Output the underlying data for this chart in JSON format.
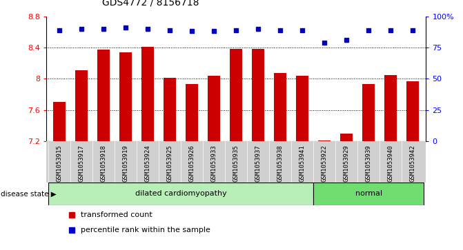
{
  "title": "GDS4772 / 8156718",
  "samples": [
    "GSM1053915",
    "GSM1053917",
    "GSM1053918",
    "GSM1053919",
    "GSM1053924",
    "GSM1053925",
    "GSM1053926",
    "GSM1053933",
    "GSM1053935",
    "GSM1053937",
    "GSM1053938",
    "GSM1053941",
    "GSM1053922",
    "GSM1053929",
    "GSM1053939",
    "GSM1053940",
    "GSM1053942"
  ],
  "transformed_count": [
    7.7,
    8.11,
    8.37,
    8.34,
    8.41,
    8.01,
    7.93,
    8.04,
    8.38,
    8.38,
    8.07,
    8.04,
    7.21,
    7.3,
    7.93,
    8.05,
    7.97
  ],
  "percentile_rank": [
    89,
    90,
    90,
    91,
    90,
    89,
    88,
    88,
    89,
    90,
    89,
    89,
    79,
    81,
    89,
    89,
    89
  ],
  "disease_groups": [
    {
      "label": "dilated cardiomyopathy",
      "start": 0,
      "end": 12,
      "color": "#b8eeb8"
    },
    {
      "label": "normal",
      "start": 12,
      "end": 17,
      "color": "#70dd70"
    }
  ],
  "ylim_left": [
    7.2,
    8.8
  ],
  "ylim_right": [
    0,
    100
  ],
  "bar_color": "#cc0000",
  "dot_color": "#0000cc",
  "dotted_gridlines": [
    7.6,
    8.0,
    8.4
  ],
  "right_ticks": [
    0,
    25,
    50,
    75,
    100
  ],
  "right_tick_labels": [
    "0",
    "25",
    "50",
    "75",
    "100%"
  ],
  "left_tick_labels": [
    "7.2",
    "7.6",
    "8",
    "8.4",
    "8.8"
  ],
  "left_ticks": [
    7.2,
    7.6,
    8.0,
    8.4,
    8.8
  ]
}
